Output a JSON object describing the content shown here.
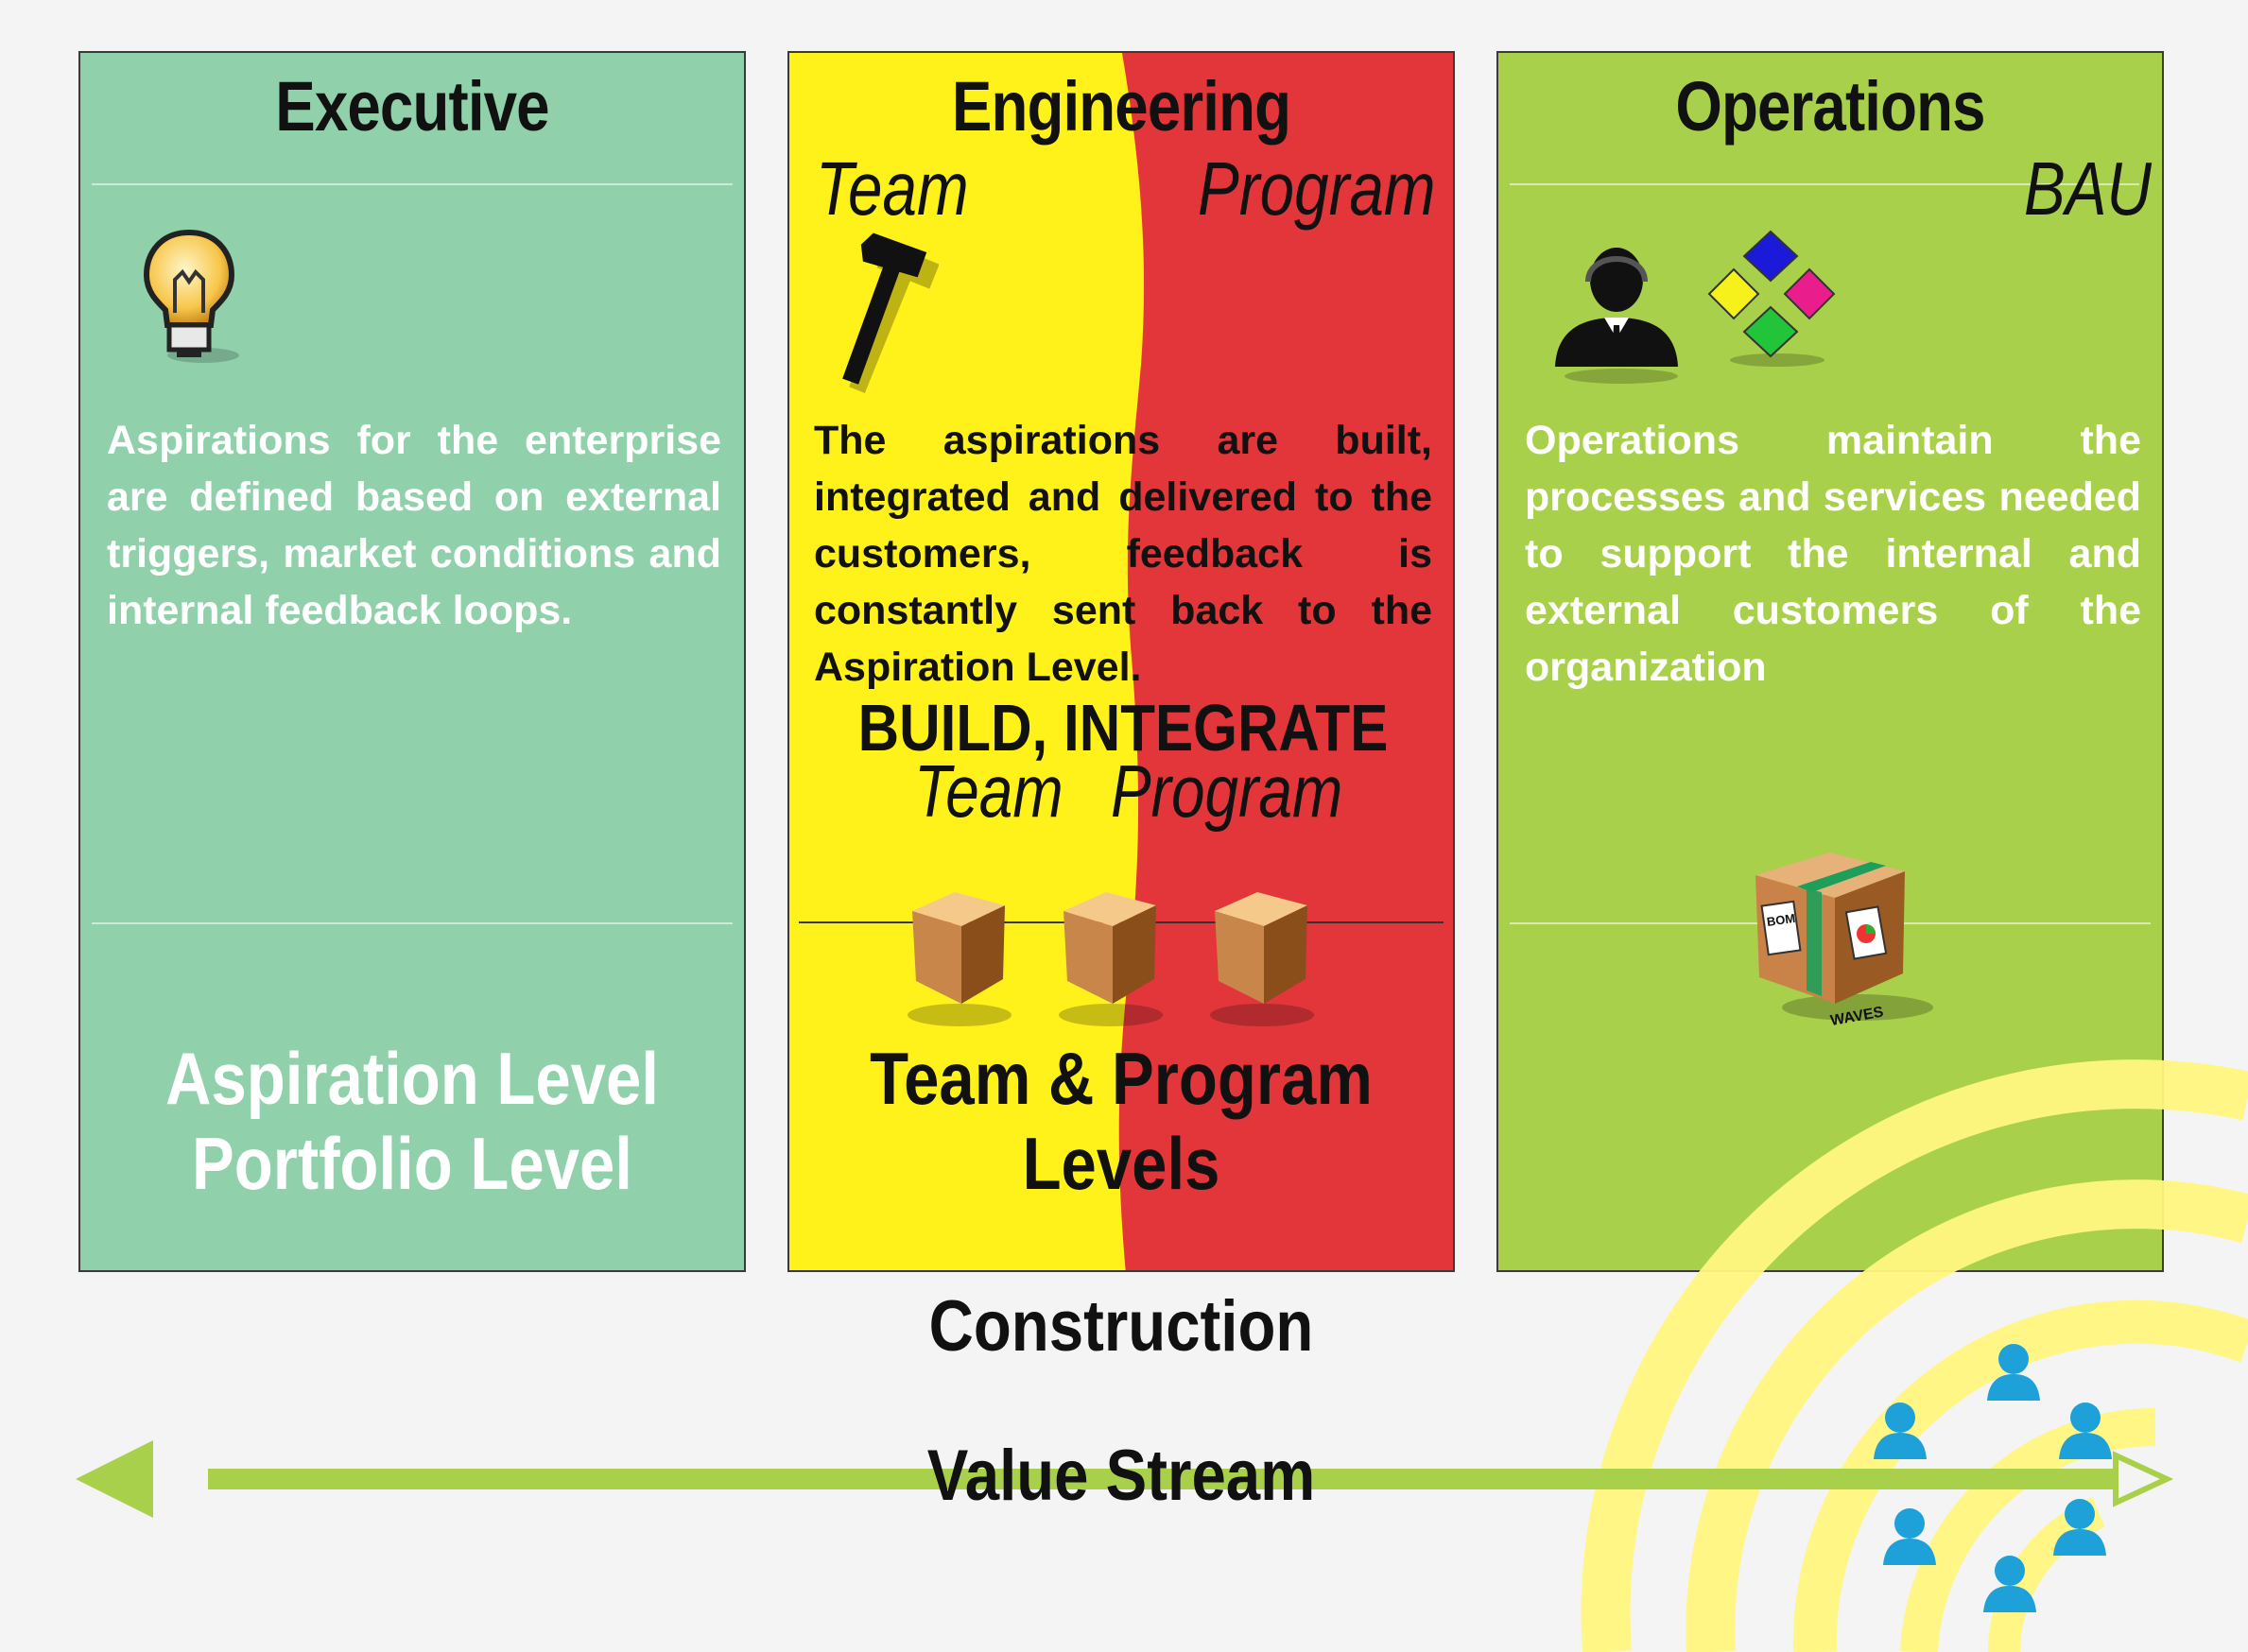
{
  "executive": {
    "title": "Executive",
    "body": "Aspirations for the enterprise are defined based on external triggers, market conditions and internal feedback loops.",
    "level_line1": "Aspiration Level",
    "level_line2": "Portfolio Level",
    "icon": "lightbulb-icon",
    "color": "#90d0ab"
  },
  "engineering": {
    "title": "Engineering",
    "sub_left": "Team",
    "sub_right": "Program",
    "body": "The aspirations are built, integrated and delivered to the customers, feedback is constantly sent back to the Aspiration Level.",
    "build_label": "BUILD, INTEGRATE",
    "build_team": "Team",
    "build_program": "Program",
    "level_line1": "Team & Program",
    "level_line2": "Levels",
    "icon": "hammer-icon",
    "colors": {
      "team": "#fff11a",
      "program": "#e3363a"
    }
  },
  "operations": {
    "title": "Operations",
    "sub": "BAU",
    "body": "Operations maintain the processes and services needed to support the internal and external customers of the organization",
    "icons": [
      "support-agent-icon",
      "diamond-tiles-icon",
      "package-box-icon"
    ],
    "box_labels": {
      "bom": "BOM",
      "waves": "WAVES"
    },
    "color": "#a8d04a"
  },
  "footer": {
    "construction": "Construction",
    "value_stream": "Value Stream",
    "arrow_color": "#a8d04a"
  }
}
